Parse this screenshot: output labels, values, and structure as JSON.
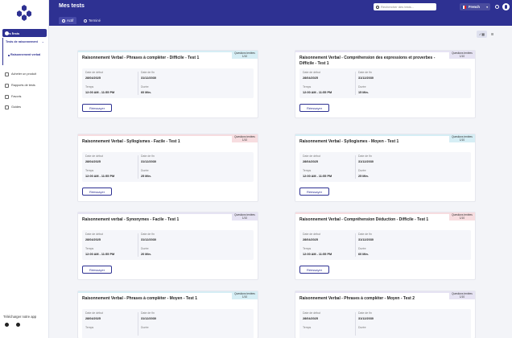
{
  "header": {
    "title": "Mes tests",
    "tabs": [
      "Actif",
      "Terminé"
    ],
    "search_placeholder": "Rechercher des tests...",
    "language": "French"
  },
  "sidebar": {
    "active": "Mes tests",
    "sub_parent": "Tests de raisonnement",
    "sub_child": "Raisonnement verbal",
    "items": [
      "Acheter un produit",
      "Rapports de tests",
      "Favoris",
      "Guides"
    ],
    "download": "Télécharger notre app"
  },
  "labels": {
    "start": "Date de début",
    "end": "Date de fin",
    "time": "Temps",
    "duration": "Durée",
    "retry": "Réessayer",
    "questions": "Questions tentées"
  },
  "colors": {
    "brand": "#2e3192",
    "accent_blue": "#d6eef5",
    "accent_purple": "#e6e3f3",
    "accent_red": "#f7dde0"
  },
  "cards": [
    {
      "title": "Raisonnement Verbal - Phrases à compléter - Difficile - Test 1",
      "count": "1/10",
      "start": "28/04/2025",
      "end": "31/12/2030",
      "time": "12:00 AM - 11:55 PM",
      "duration": "60 Min.",
      "accent": "blue"
    },
    {
      "title": "Raisonnement Verbal - Compréhension des expressions et proverbes - Difficile - Test 1",
      "count": "1/10",
      "start": "28/04/2025",
      "end": "31/12/2030",
      "time": "12:00 AM - 11:55 PM",
      "duration": "15 Min.",
      "accent": "purple"
    },
    {
      "title": "Raisonnement Verbal - Syllogismes - Facile - Test 1",
      "count": "1/10",
      "start": "28/04/2025",
      "end": "31/12/2030",
      "time": "12:00 AM - 11:55 PM",
      "duration": "25 Min.",
      "accent": "red"
    },
    {
      "title": "Raisonnement Verbal - Syllogismes - Moyen - Test 1",
      "count": "1/10",
      "start": "28/04/2025",
      "end": "31/12/2030",
      "time": "12:00 AM - 11:55 PM",
      "duration": "25 Min.",
      "accent": "blue"
    },
    {
      "title": "Raisonnement verbal - Synonymes - Facile - Test 1",
      "count": "1/10",
      "start": "28/04/2025",
      "end": "31/12/2030",
      "time": "12:00 AM - 11:55 PM",
      "duration": "20 Min.",
      "accent": "purple"
    },
    {
      "title": "Raisonnement Verbal - Compréhension Déduction - Difficile - Test 1",
      "count": "1/10",
      "start": "28/04/2025",
      "end": "31/12/2030",
      "time": "12:00 AM - 11:55 PM",
      "duration": "60 Min.",
      "accent": "red"
    },
    {
      "title": "Raisonnement Verbal - Phrases à compléter - Moyen - Test 1",
      "count": "1/10",
      "start": "28/04/2025",
      "end": "31/12/2030",
      "time": "",
      "duration": "",
      "accent": "blue"
    },
    {
      "title": "Raisonnement Verbal - Phrases à compléter - Moyen - Test 2",
      "count": "1/10",
      "start": "28/04/2025",
      "end": "31/12/2030",
      "time": "",
      "duration": "",
      "accent": "purple"
    }
  ]
}
